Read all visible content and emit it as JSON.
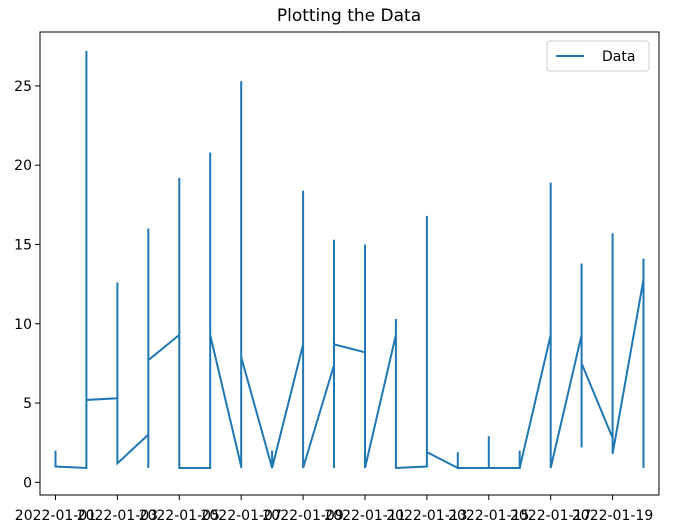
{
  "chart_data": {
    "type": "line",
    "title": "Plotting the Data",
    "xlabel": "",
    "ylabel": "",
    "ylim": [
      -0.8,
      28.4
    ],
    "yticks": [
      0,
      5,
      10,
      15,
      20,
      25
    ],
    "xticks": [
      {
        "i": 0,
        "label": "2022-01-01"
      },
      {
        "i": 2,
        "label": "2022-01-03"
      },
      {
        "i": 4,
        "label": "2022-01-05"
      },
      {
        "i": 6,
        "label": "2022-01-07"
      },
      {
        "i": 8,
        "label": "2022-01-09"
      },
      {
        "i": 10,
        "label": "2022-01-11"
      },
      {
        "i": 12,
        "label": "2022-01-13"
      },
      {
        "i": 14,
        "label": "2022-01-15"
      },
      {
        "i": 16,
        "label": "2022-01-17"
      },
      {
        "i": 18,
        "label": "2022-01-19"
      }
    ],
    "xlim": [
      -0.5,
      19.5
    ],
    "legend": {
      "position": "top-right",
      "entries": [
        "Data"
      ]
    },
    "colors": {
      "series": "#1f77b4"
    },
    "series": [
      {
        "name": "Data",
        "points": [
          [
            0,
            2.0
          ],
          [
            0,
            1.0
          ],
          [
            1,
            0.9
          ],
          [
            1,
            27.2
          ],
          [
            1,
            5.2
          ],
          [
            2,
            5.3
          ],
          [
            2,
            12.6
          ],
          [
            2,
            1.2
          ],
          [
            3,
            3.0
          ],
          [
            3,
            0.9
          ],
          [
            3,
            16.0
          ],
          [
            3,
            7.7
          ],
          [
            4,
            9.3
          ],
          [
            4,
            19.2
          ],
          [
            4,
            0.9
          ],
          [
            5,
            0.9
          ],
          [
            5,
            20.8
          ],
          [
            5,
            9.3
          ],
          [
            6,
            1.0
          ],
          [
            6,
            25.3
          ],
          [
            6,
            0.9
          ],
          [
            6,
            7.9
          ],
          [
            7,
            0.9
          ],
          [
            7,
            2.0
          ],
          [
            7,
            0.9
          ],
          [
            8,
            8.7
          ],
          [
            8,
            18.4
          ],
          [
            8,
            0.9
          ],
          [
            9,
            7.4
          ],
          [
            9,
            0.9
          ],
          [
            9,
            15.3
          ],
          [
            9,
            8.7
          ],
          [
            10,
            8.2
          ],
          [
            10,
            0.9
          ],
          [
            10,
            15.0
          ],
          [
            10,
            0.9
          ],
          [
            11,
            9.3
          ],
          [
            11,
            10.3
          ],
          [
            11,
            0.9
          ],
          [
            12,
            1.0
          ],
          [
            12,
            16.8
          ],
          [
            12,
            1.9
          ],
          [
            13,
            0.9
          ],
          [
            13,
            1.9
          ],
          [
            13,
            0.9
          ],
          [
            14,
            0.9
          ],
          [
            14,
            2.9
          ],
          [
            14,
            0.9
          ],
          [
            15,
            0.9
          ],
          [
            15,
            2.0
          ],
          [
            15,
            0.9
          ],
          [
            16,
            9.3
          ],
          [
            16,
            18.9
          ],
          [
            16,
            0.9
          ],
          [
            17,
            9.3
          ],
          [
            17,
            13.8
          ],
          [
            17,
            2.2
          ],
          [
            17,
            7.5
          ],
          [
            18,
            2.8
          ],
          [
            18,
            15.7
          ],
          [
            18,
            1.8
          ],
          [
            19,
            12.8
          ],
          [
            19,
            14.1
          ],
          [
            19,
            0.9
          ]
        ]
      }
    ]
  }
}
